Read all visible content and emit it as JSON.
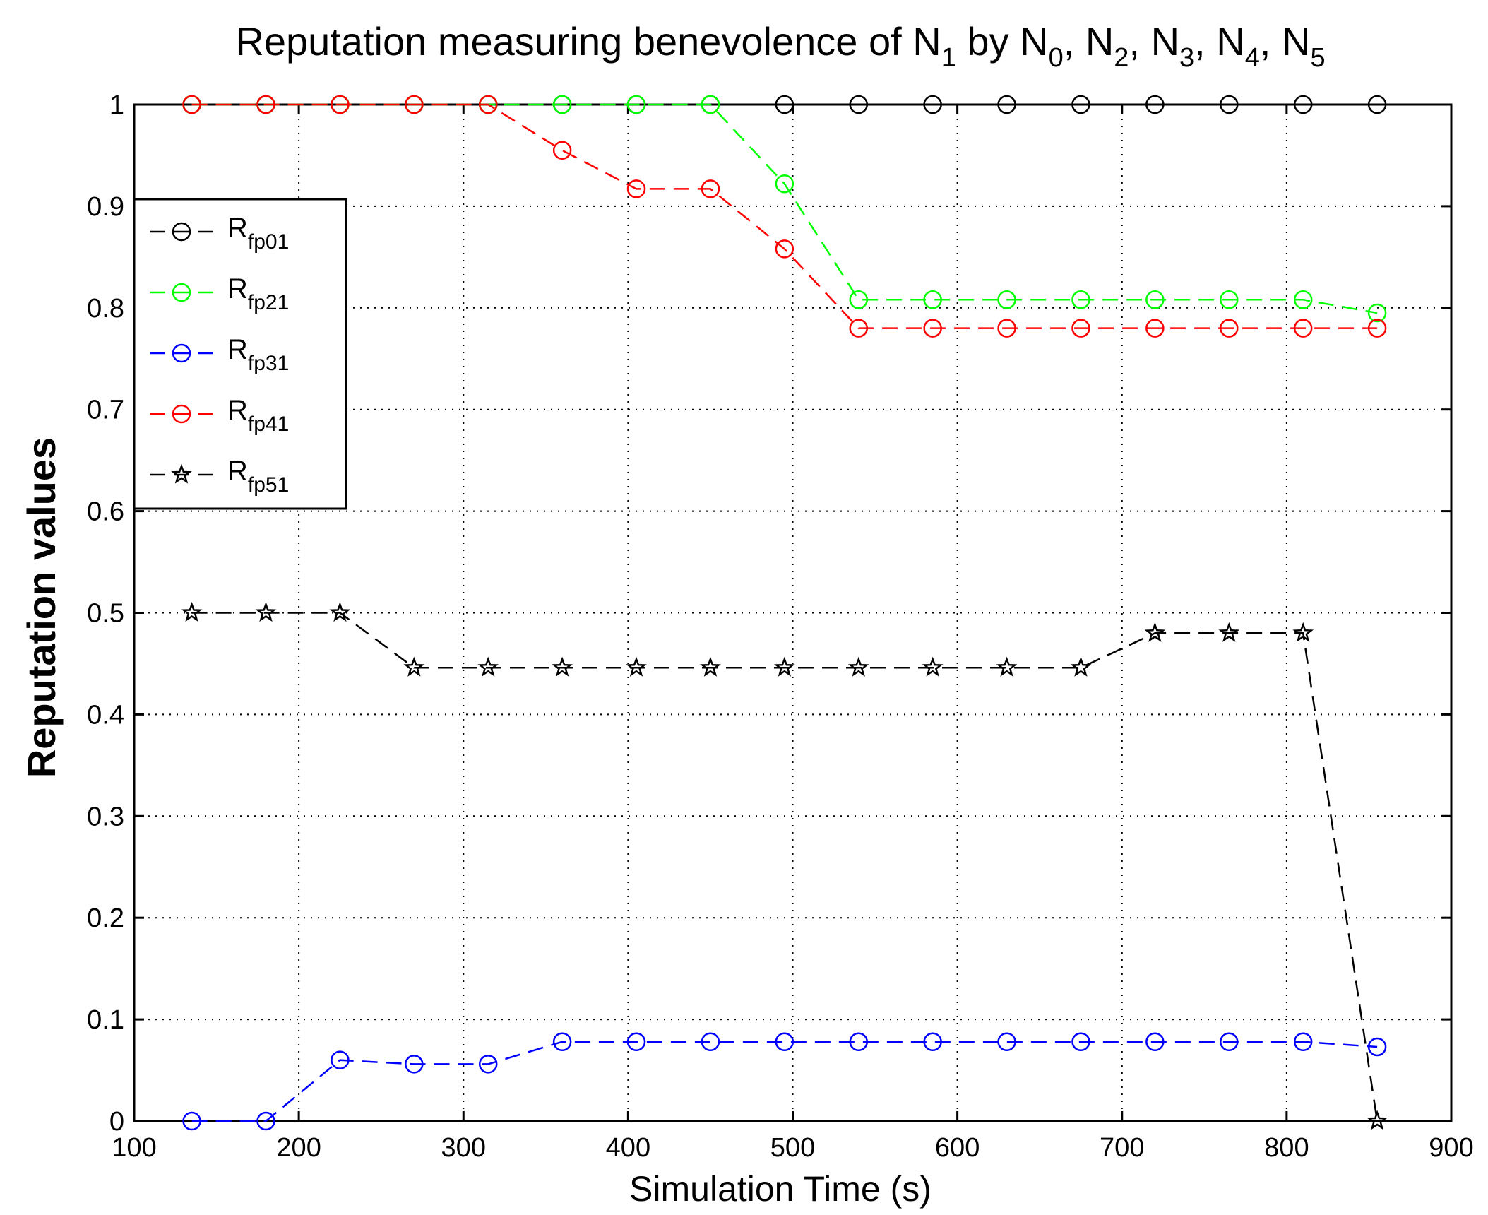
{
  "chart_data": {
    "type": "line",
    "title": {
      "prefix": "Reputation measuring benevolence of ",
      "parts": [
        {
          "base": "N",
          "sub": "1",
          "after": " by "
        },
        {
          "base": "N",
          "sub": "0",
          "after": ", "
        },
        {
          "base": "N",
          "sub": "2",
          "after": ", "
        },
        {
          "base": "N",
          "sub": "3",
          "after": ", "
        },
        {
          "base": "N",
          "sub": "4",
          "after": ", "
        },
        {
          "base": "N",
          "sub": "5",
          "after": ""
        }
      ]
    },
    "xlabel": "Simulation Time (s)",
    "ylabel": "Reputation values",
    "xlim": [
      100,
      900
    ],
    "ylim": [
      0,
      1
    ],
    "xticks": [
      100,
      200,
      300,
      400,
      500,
      600,
      700,
      800,
      900
    ],
    "yticks": [
      0,
      0.1,
      0.2,
      0.3,
      0.4,
      0.5,
      0.6,
      0.7,
      0.8,
      0.9,
      1
    ],
    "ytick_labels": [
      "0",
      "0.1",
      "0.2",
      "0.3",
      "0.4",
      "0.5",
      "0.6",
      "0.7",
      "0.8",
      "0.9",
      "1"
    ],
    "grid": true,
    "legend_position": "upper-left",
    "x": [
      135,
      180,
      225,
      270,
      315,
      360,
      405,
      450,
      495,
      540,
      585,
      630,
      675,
      720,
      765,
      810,
      855
    ],
    "series": [
      {
        "name": "R",
        "sub": "fp01",
        "color": "#000000",
        "marker": "circle",
        "values": [
          1,
          1,
          1,
          1,
          1,
          1,
          1,
          1,
          1,
          1,
          1,
          1,
          1,
          1,
          1,
          1,
          1
        ]
      },
      {
        "name": "R",
        "sub": "fp21",
        "color": "#00ff00",
        "marker": "circle",
        "values": [
          1,
          1,
          1,
          1,
          1,
          1,
          1,
          1,
          0.922,
          0.808,
          0.808,
          0.808,
          0.808,
          0.808,
          0.808,
          0.808,
          0.795
        ]
      },
      {
        "name": "R",
        "sub": "fp31",
        "color": "#0000ff",
        "marker": "circle",
        "values": [
          0,
          0,
          0.06,
          0.056,
          0.056,
          0.078,
          0.078,
          0.078,
          0.078,
          0.078,
          0.078,
          0.078,
          0.078,
          0.078,
          0.078,
          0.078,
          0.073
        ]
      },
      {
        "name": "R",
        "sub": "fp41",
        "color": "#ff0000",
        "marker": "circle",
        "values": [
          1,
          1,
          1,
          1,
          1,
          0.955,
          0.917,
          0.917,
          0.858,
          0.78,
          0.78,
          0.78,
          0.78,
          0.78,
          0.78,
          0.78,
          0.78
        ]
      },
      {
        "name": "R",
        "sub": "fp51",
        "color": "#000000",
        "marker": "star",
        "values": [
          0.5,
          0.5,
          0.5,
          0.446,
          0.446,
          0.446,
          0.446,
          0.446,
          0.446,
          0.446,
          0.446,
          0.446,
          0.446,
          0.48,
          0.48,
          0.48,
          0
        ]
      }
    ]
  }
}
